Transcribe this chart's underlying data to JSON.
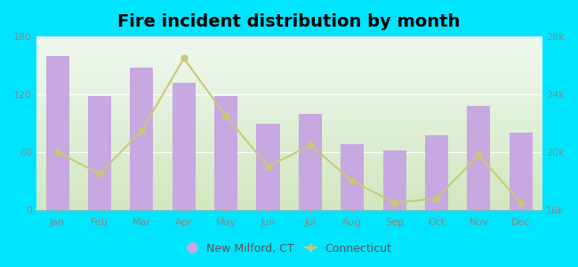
{
  "title": "Fire incident distribution by month",
  "months": [
    "Jan",
    "Feb",
    "Mar",
    "Apr",
    "May",
    "Jun",
    "Jul",
    "Aug",
    "Sep",
    "Oct",
    "Nov",
    "Dec"
  ],
  "bar_values": [
    160,
    118,
    148,
    132,
    118,
    90,
    100,
    68,
    62,
    78,
    108,
    80
  ],
  "line_values": [
    20000,
    18500,
    21500,
    26500,
    22500,
    19000,
    20500,
    18000,
    16500,
    16800,
    19800,
    16500
  ],
  "bar_color": "#c8a8e0",
  "bar_edge_color": "#c8a8e0",
  "line_color": "#c8c878",
  "line_marker": "o",
  "background_outer": "#00e5ff",
  "background_plot_bottom": "#d0e8c0",
  "background_plot_top": "#f0f8f0",
  "ylim_left": [
    0,
    180
  ],
  "ylim_right": [
    16000,
    28000
  ],
  "yticks_left": [
    0,
    60,
    120,
    180
  ],
  "yticks_right": [
    16000,
    20000,
    24000,
    28000
  ],
  "ytick_labels_right": [
    "16k",
    "20k",
    "24k",
    "28k"
  ],
  "legend_label_bar": "New Milford, CT",
  "legend_label_line": "Connecticut",
  "title_fontsize": 14,
  "tick_fontsize": 8,
  "legend_fontsize": 9,
  "tick_color": "#888888",
  "axis_label_color": "#888888"
}
